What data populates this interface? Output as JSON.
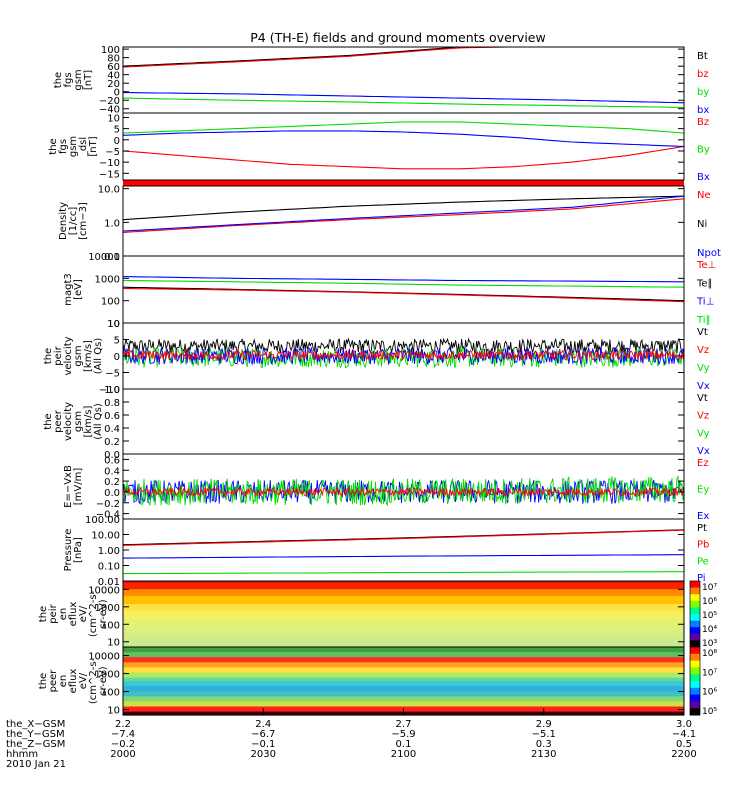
{
  "title": "P4 (TH-E) fields and ground moments overview",
  "colors": {
    "black": "#000000",
    "red": "#ff0000",
    "green": "#00dd00",
    "blue": "#0000ff"
  },
  "chart_data": [
    {
      "type": "line",
      "ylabel": [
        "the",
        "fgs",
        "gsm",
        "[nT]"
      ],
      "yticks": [
        {
          "v": 100,
          "t": "100"
        },
        {
          "v": 80,
          "t": "80"
        },
        {
          "v": 60,
          "t": "60"
        },
        {
          "v": 40,
          "t": "40"
        },
        {
          "v": 20,
          "t": "20"
        },
        {
          "v": 0,
          "t": "0"
        },
        {
          "v": -20,
          "t": "−20"
        },
        {
          "v": -40,
          "t": "−40"
        }
      ],
      "ylim": [
        -50,
        105
      ],
      "legend": [
        {
          "name": "Bt",
          "color": "black"
        },
        {
          "name": "bz",
          "color": "red"
        },
        {
          "name": "by",
          "color": "green"
        },
        {
          "name": "bx",
          "color": "blue"
        }
      ],
      "series": [
        {
          "name": "Bt",
          "color": "black",
          "x": [
            0,
            0.2,
            0.4,
            0.6,
            0.8,
            1
          ],
          "y": [
            60,
            72,
            85,
            105,
            110,
            110
          ]
        },
        {
          "name": "bz",
          "color": "red",
          "x": [
            0,
            0.2,
            0.4,
            0.6,
            0.8,
            1
          ],
          "y": [
            58,
            70,
            83,
            103,
            108,
            108
          ]
        },
        {
          "name": "by",
          "color": "green",
          "x": [
            0,
            0.2,
            0.4,
            0.6,
            0.8,
            1
          ],
          "y": [
            -15,
            -20,
            -24,
            -29,
            -33,
            -37
          ]
        },
        {
          "name": "bx",
          "color": "blue",
          "x": [
            0,
            0.2,
            0.4,
            0.6,
            0.8,
            1
          ],
          "y": [
            -2,
            -5,
            -10,
            -15,
            -20,
            -26
          ]
        }
      ]
    },
    {
      "type": "line",
      "ylabel": [
        "the",
        "fgs",
        "gsm",
        "_dsl",
        "[nT]"
      ],
      "yticks": [
        {
          "v": 10,
          "t": "10"
        },
        {
          "v": 5,
          "t": "5"
        },
        {
          "v": 0,
          "t": "0"
        },
        {
          "v": -5,
          "t": "−5"
        },
        {
          "v": -10,
          "t": "−10"
        },
        {
          "v": -15,
          "t": "−15"
        }
      ],
      "ylim": [
        -18,
        12
      ],
      "legend": [
        {
          "name": "Bz",
          "color": "red"
        },
        {
          "name": "By",
          "color": "green"
        },
        {
          "name": "Bx",
          "color": "blue"
        }
      ],
      "series": [
        {
          "name": "Bz",
          "color": "red",
          "x": [
            0,
            0.1,
            0.2,
            0.3,
            0.4,
            0.5,
            0.6,
            0.7,
            0.8,
            0.9,
            1
          ],
          "y": [
            -5,
            -7,
            -9,
            -11,
            -12,
            -13,
            -13,
            -12,
            -10,
            -7,
            -3
          ]
        },
        {
          "name": "By",
          "color": "green",
          "x": [
            0,
            0.1,
            0.2,
            0.3,
            0.4,
            0.5,
            0.6,
            0.7,
            0.8,
            0.9,
            1
          ],
          "y": [
            3,
            4,
            5,
            6,
            7,
            8,
            8,
            7,
            6,
            5,
            3
          ]
        },
        {
          "name": "Bx",
          "color": "blue",
          "x": [
            0,
            0.1,
            0.2,
            0.3,
            0.4,
            0.5,
            0.6,
            0.7,
            0.8,
            0.9,
            1
          ],
          "y": [
            2,
            3,
            3.5,
            4,
            4,
            3.5,
            2.5,
            1,
            -1,
            -2,
            -3
          ]
        }
      ]
    },
    {
      "type": "line",
      "log": true,
      "ylabel": [
        "Density",
        "[1/cc]",
        "[cm−3]"
      ],
      "yticks": [
        {
          "v": 10,
          "t": "10.0"
        },
        {
          "v": 1,
          "t": "1.0"
        },
        {
          "v": 0.1,
          "t": "0.1"
        }
      ],
      "ylim": [
        0.1,
        12
      ],
      "legend": [
        {
          "name": "Ne",
          "color": "red"
        },
        {
          "name": "Ni",
          "color": "black"
        },
        {
          "name": "Npot",
          "color": "blue"
        }
      ],
      "series": [
        {
          "name": "Ni",
          "color": "black",
          "x": [
            0,
            0.2,
            0.4,
            0.6,
            0.8,
            1
          ],
          "y": [
            1.2,
            2.0,
            3.0,
            4.0,
            5.0,
            6.0
          ]
        },
        {
          "name": "Ne",
          "color": "red",
          "x": [
            0,
            0.2,
            0.4,
            0.6,
            0.8,
            1
          ],
          "y": [
            0.5,
            0.8,
            1.2,
            1.7,
            2.5,
            5.0
          ]
        },
        {
          "name": "Npot",
          "color": "blue",
          "x": [
            0,
            0.2,
            0.4,
            0.6,
            0.8,
            1
          ],
          "y": [
            0.55,
            0.85,
            1.3,
            1.9,
            2.8,
            6.0
          ]
        }
      ]
    },
    {
      "type": "line",
      "log": true,
      "ylabel": [
        "magt3",
        "[eV]"
      ],
      "yticks": [
        {
          "v": 10000,
          "t": "10000"
        },
        {
          "v": 1000,
          "t": "1000"
        },
        {
          "v": 100,
          "t": "100"
        },
        {
          "v": 10,
          "t": "10"
        }
      ],
      "ylim": [
        10,
        10000
      ],
      "legend": [
        {
          "name": "Te⊥",
          "color": "red"
        },
        {
          "name": "Te∥",
          "color": "black"
        },
        {
          "name": "Ti⊥",
          "color": "blue"
        },
        {
          "name": "Ti∥",
          "color": "green"
        }
      ],
      "series": [
        {
          "name": "Ti⊥",
          "color": "blue",
          "x": [
            0,
            0.2,
            0.4,
            0.6,
            0.8,
            1
          ],
          "y": [
            1200,
            1000,
            900,
            800,
            750,
            700
          ]
        },
        {
          "name": "Ti∥",
          "color": "green",
          "x": [
            0,
            0.2,
            0.4,
            0.6,
            0.8,
            1
          ],
          "y": [
            800,
            700,
            600,
            500,
            450,
            400
          ]
        },
        {
          "name": "Te∥",
          "color": "black",
          "x": [
            0,
            0.2,
            0.4,
            0.6,
            0.8,
            1
          ],
          "y": [
            400,
            320,
            250,
            190,
            140,
            100
          ]
        },
        {
          "name": "Te⊥",
          "color": "red",
          "x": [
            0,
            0.2,
            0.4,
            0.6,
            0.8,
            1
          ],
          "y": [
            350,
            300,
            240,
            180,
            130,
            90
          ]
        }
      ]
    },
    {
      "type": "line",
      "noisy": true,
      "ylabel": [
        "the",
        "peir",
        "velocity",
        "gsm",
        "[km/s]",
        "(All Qs)"
      ],
      "yticks": [
        {
          "v": 10,
          "t": "10"
        },
        {
          "v": 5,
          "t": "5"
        },
        {
          "v": 0,
          "t": "0"
        },
        {
          "v": -5,
          "t": "−5"
        },
        {
          "v": -10,
          "t": "−10"
        }
      ],
      "ylim": [
        -10,
        10
      ],
      "legend": [
        {
          "name": "Vt",
          "color": "black"
        },
        {
          "name": "Vz",
          "color": "red"
        },
        {
          "name": "Vy",
          "color": "green"
        },
        {
          "name": "Vx",
          "color": "blue"
        }
      ],
      "series": [
        {
          "name": "Vt",
          "color": "black",
          "x": [
            0,
            1
          ],
          "y": [
            3,
            3
          ],
          "amp": 2.2
        },
        {
          "name": "Vy",
          "color": "green",
          "x": [
            0,
            1
          ],
          "y": [
            -0.5,
            -0.5
          ],
          "amp": 3.0
        },
        {
          "name": "Vx",
          "color": "blue",
          "x": [
            0,
            1
          ],
          "y": [
            0,
            0
          ],
          "amp": 2.5
        },
        {
          "name": "Vz",
          "color": "red",
          "x": [
            0,
            1
          ],
          "y": [
            0.3,
            0.3
          ],
          "amp": 1.4
        }
      ]
    },
    {
      "type": "line",
      "ylabel": [
        "the",
        "peer",
        "velocity",
        "gsm",
        "[km/s]",
        "(All Qs)"
      ],
      "yticks": [
        {
          "v": 1,
          "t": "1.0"
        },
        {
          "v": 0.8,
          "t": "0.8"
        },
        {
          "v": 0.6,
          "t": "0.6"
        },
        {
          "v": 0.4,
          "t": "0.4"
        },
        {
          "v": 0.2,
          "t": "0.2"
        },
        {
          "v": 0,
          "t": "0.0"
        }
      ],
      "ylim": [
        0,
        1
      ],
      "legend": [
        {
          "name": "Vt",
          "color": "black"
        },
        {
          "name": "Vz",
          "color": "red"
        },
        {
          "name": "Vy",
          "color": "green"
        },
        {
          "name": "Vx",
          "color": "blue"
        }
      ],
      "series": []
    },
    {
      "type": "line",
      "noisy": true,
      "ylabel": [
        "E=−VxB",
        "[mV/m]"
      ],
      "yticks": [
        {
          "v": 0.6,
          "t": "0.6"
        },
        {
          "v": 0.4,
          "t": "0.4"
        },
        {
          "v": 0.2,
          "t": "0.2"
        },
        {
          "v": 0,
          "t": "0.0"
        },
        {
          "v": -0.2,
          "t": "−0.2"
        },
        {
          "v": -0.4,
          "t": "−0.4"
        }
      ],
      "ylim": [
        -0.5,
        0.7
      ],
      "legend": [
        {
          "name": "Ez",
          "color": "red"
        },
        {
          "name": "Ey",
          "color": "green"
        },
        {
          "name": "Ex",
          "color": "blue"
        }
      ],
      "series": [
        {
          "name": "Ex",
          "color": "blue",
          "x": [
            0,
            1
          ],
          "y": [
            0,
            0
          ],
          "amp": 0.22
        },
        {
          "name": "Ey",
          "color": "green",
          "x": [
            0,
            0.5,
            1
          ],
          "y": [
            0,
            0,
            0.05
          ],
          "amp": 0.25
        },
        {
          "name": "Ez",
          "color": "red",
          "x": [
            0,
            1
          ],
          "y": [
            0,
            0
          ],
          "amp": 0.07
        }
      ]
    },
    {
      "type": "line",
      "log": true,
      "ylabel": [
        "Pressure",
        "[nPa]"
      ],
      "yticks": [
        {
          "v": 100,
          "t": "100.00"
        },
        {
          "v": 10,
          "t": "10.00"
        },
        {
          "v": 1,
          "t": "1.00"
        },
        {
          "v": 0.1,
          "t": "0.10"
        },
        {
          "v": 0.01,
          "t": "0.01"
        }
      ],
      "ylim": [
        0.01,
        100
      ],
      "legend": [
        {
          "name": "Pt",
          "color": "black"
        },
        {
          "name": "Pb",
          "color": "red"
        },
        {
          "name": "Pe",
          "color": "green"
        },
        {
          "name": "Pi",
          "color": "blue"
        }
      ],
      "series": [
        {
          "name": "Pt",
          "color": "black",
          "x": [
            0,
            0.5,
            1
          ],
          "y": [
            2.2,
            6,
            20
          ]
        },
        {
          "name": "Pb",
          "color": "red",
          "x": [
            0,
            0.5,
            1
          ],
          "y": [
            2.0,
            5.5,
            19
          ]
        },
        {
          "name": "Pi",
          "color": "blue",
          "x": [
            0,
            0.5,
            1
          ],
          "y": [
            0.3,
            0.4,
            0.5
          ]
        },
        {
          "name": "Pe",
          "color": "green",
          "x": [
            0,
            0.5,
            1
          ],
          "y": [
            0.03,
            0.035,
            0.04
          ]
        }
      ]
    },
    {
      "type": "heatmap",
      "ylabel": [
        "the",
        "peir",
        "en",
        "eflux",
        "eV/",
        "(cm^2-s-",
        "sr-eV)"
      ],
      "yticks": [
        {
          "v": 10000,
          "t": "10000"
        },
        {
          "v": 1000,
          "t": "1000"
        },
        {
          "v": 100,
          "t": "100"
        },
        {
          "v": 10,
          "t": "10"
        }
      ],
      "ylim": [
        5,
        30000
      ],
      "colorbar": [
        "10⁷",
        "10⁶",
        "10⁵",
        "10⁴",
        "10³"
      ]
    },
    {
      "type": "heatmap",
      "ylabel": [
        "the",
        "peer",
        "en",
        "eflux",
        "eV/",
        "(cm^2-s-",
        "sr-eV)"
      ],
      "yticks": [
        {
          "v": 10000,
          "t": "10000"
        },
        {
          "v": 1000,
          "t": "1000"
        },
        {
          "v": 100,
          "t": "100"
        },
        {
          "v": 10,
          "t": "10"
        }
      ],
      "ylim": [
        5,
        30000
      ],
      "colorbar": [
        "10⁸",
        "10⁷",
        "10⁶",
        "10⁵"
      ]
    }
  ],
  "x_axis": {
    "ticks": [
      {
        "frac": 0,
        "x": "X-GSM tick 1",
        "vals": [
          "2.2",
          "−7.4",
          "−0.2",
          "2000"
        ]
      },
      {
        "frac": 0.25,
        "x": "X-GSM tick 2",
        "vals": [
          "2.4",
          "−6.7",
          "−0.1",
          "2030"
        ]
      },
      {
        "frac": 0.5,
        "x": "X-GSM tick 3",
        "vals": [
          "2.7",
          "−5.9",
          "0.1",
          "2100"
        ]
      },
      {
        "frac": 0.75,
        "x": "X-GSM tick 4",
        "vals": [
          "2.9",
          "−5.1",
          "0.3",
          "2130"
        ]
      },
      {
        "frac": 1,
        "x": "X-GSM tick 5",
        "vals": [
          "3.0",
          "−4.1",
          "0.5",
          "2200"
        ]
      }
    ],
    "row_labels": [
      "the_X−GSM",
      "the_Y−GSM",
      "the_Z−GSM",
      "hhmm",
      "2010 Jan 21"
    ]
  }
}
